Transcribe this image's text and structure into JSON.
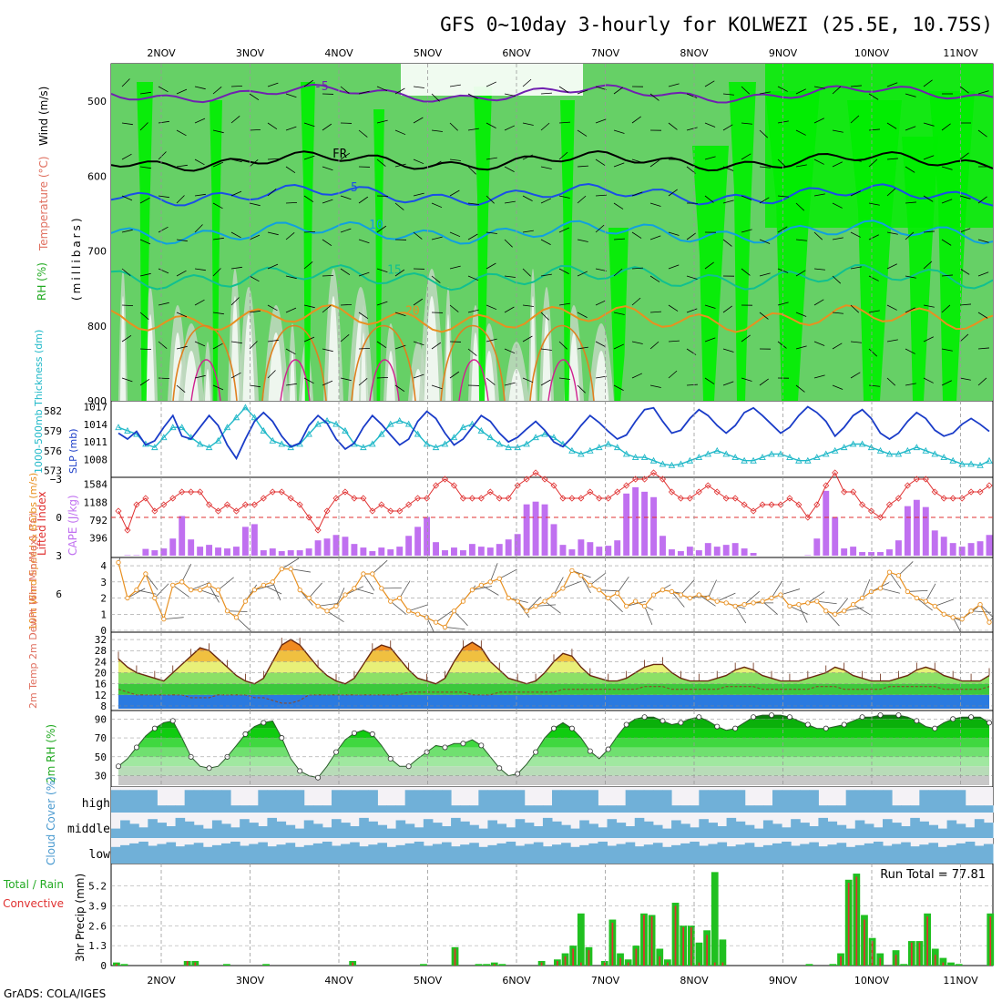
{
  "title": "GFS 0~10day 3-hourly for KOLWEZI (25.5E, 10.75S)",
  "credit": "GrADS: COLA/IGES",
  "dates": [
    "2NOV",
    "3NOV",
    "4NOV",
    "5NOV",
    "6NOV",
    "7NOV",
    "8NOV",
    "9NOV",
    "10NOV",
    "11NOV"
  ],
  "colors": {
    "rh_dark": "#00ee00",
    "rh_mid": "#66d066",
    "rh_light": "#c0d8c0",
    "cape": "#c070f0",
    "lifted": "#e03030",
    "slp": "#1a3cc8",
    "thickness": "#20b8c8",
    "wind": "#e89020",
    "precip_total": "#20c020",
    "precip_conv": "#e03030",
    "cloud": "#70b0d8",
    "cloud_bg": "#f4f2f6"
  },
  "chart_data": [
    {
      "type": "heatmap",
      "panel": "upper_air",
      "ylabel_left": "RH (%)",
      "ylabel_temp": "Temperature (°C)",
      "ylabel_wind": "Wind (m/s)",
      "ylabel_units": "(millibars)",
      "ylim": [
        900,
        450
      ],
      "yticks": [
        500,
        600,
        700,
        800,
        900
      ],
      "isotherms": [
        {
          "label": "-5",
          "pressure": 490
        },
        {
          "label": "FR",
          "pressure": 580
        },
        {
          "label": "5",
          "pressure": 625
        },
        {
          "label": "10",
          "pressure": 675
        },
        {
          "label": "15",
          "pressure": 735
        },
        {
          "label": "20",
          "pressure": 790
        }
      ]
    },
    {
      "type": "line",
      "panel": "slp_thickness",
      "ylabel_left": "1000-500mb Thickness (dm)",
      "ylabel_right": "SLP (mb)",
      "thickness_ticks": [
        573,
        576,
        579,
        582
      ],
      "slp_ticks": [
        1008,
        1011,
        1014,
        1017
      ],
      "series": [
        {
          "name": "SLP",
          "values": [
            1012.5,
            1011.5,
            1012.8,
            1010.5,
            1011.2,
            1013.5,
            1015.5,
            1012,
            1011.5,
            1013.5,
            1015.5,
            1013.8,
            1010.5,
            1008.2,
            1011.5,
            1014.5,
            1016,
            1014.5,
            1012,
            1010.2,
            1010.8,
            1013.8,
            1015.5,
            1014.2,
            1011.5,
            1009.8,
            1010.8,
            1013.5,
            1015.5,
            1014,
            1012.2,
            1010.5,
            1011.5,
            1014.5,
            1016.2,
            1015,
            1012.5,
            1010.5,
            1011.5,
            1013.5,
            1015.5,
            1014.5,
            1012.5,
            1011,
            1011.8,
            1013.2,
            1014.5,
            1013,
            1011,
            1010.2,
            1011.8,
            1013.8,
            1015.5,
            1014.3,
            1012.8,
            1011.5,
            1012.2,
            1014.5,
            1016.5,
            1016.8,
            1014.5,
            1012.5,
            1013,
            1015,
            1016.5,
            1015.5,
            1013.8,
            1012.5,
            1013.8,
            1016,
            1016.8,
            1015.5,
            1014,
            1012.5,
            1013.5,
            1015.5,
            1017,
            1016,
            1014.5,
            1012,
            1013.5,
            1015.5,
            1016.5,
            1015,
            1012.5,
            1011.5,
            1012.5,
            1014.5,
            1016,
            1015,
            1013,
            1012,
            1012.5,
            1014,
            1015,
            1014,
            1012.8
          ]
        },
        {
          "name": "Thickness",
          "values": [
            579.5,
            579,
            578.5,
            577,
            576.5,
            578,
            579.5,
            579.5,
            578,
            577,
            576.5,
            577.5,
            579.5,
            581,
            582.5,
            581,
            579,
            577.5,
            577,
            576.5,
            577,
            578.5,
            580,
            580.5,
            580,
            579,
            577,
            576.5,
            577,
            578.5,
            580,
            580.5,
            580,
            578.5,
            577,
            576.5,
            577,
            578,
            579.5,
            580,
            579,
            578,
            577,
            576.5,
            576.5,
            577,
            578,
            578.5,
            578,
            577,
            576,
            575.5,
            576,
            576.5,
            577,
            576.5,
            575.5,
            575,
            575,
            574.5,
            574,
            573.8,
            574,
            574.5,
            575,
            575.5,
            576,
            575.5,
            575,
            574.5,
            574.5,
            575,
            575.5,
            575.5,
            575,
            574.5,
            574.5,
            575,
            575.5,
            576,
            576.5,
            577,
            577,
            576.5,
            576,
            575.5,
            575.5,
            576,
            576.5,
            576,
            575.5,
            575,
            574.5,
            574,
            574,
            573.8,
            574.5
          ]
        }
      ]
    },
    {
      "type": "bar",
      "panel": "cape_lifted",
      "ylabel_left": "Lifted Index",
      "ylabel_right": "CAPE (J/kg)",
      "lifted_ticks": [
        6,
        3,
        0,
        -3
      ],
      "cape_ticks": [
        396,
        792,
        1188,
        1584
      ],
      "cape": [
        0,
        10,
        10,
        150,
        120,
        160,
        380,
        880,
        360,
        200,
        240,
        180,
        160,
        200,
        640,
        700,
        120,
        160,
        100,
        120,
        120,
        160,
        340,
        380,
        460,
        420,
        260,
        180,
        100,
        180,
        140,
        200,
        440,
        640,
        860,
        300,
        120,
        180,
        120,
        260,
        200,
        180,
        260,
        360,
        480,
        1140,
        1200,
        1140,
        700,
        240,
        140,
        360,
        300,
        200,
        220,
        340,
        1380,
        1520,
        1420,
        1300,
        440,
        140,
        100,
        200,
        120,
        280,
        200,
        240,
        280,
        160,
        60,
        0,
        0,
        0,
        0,
        0,
        10,
        380,
        1440,
        860,
        160,
        200,
        80,
        80,
        80,
        140,
        340,
        1100,
        1240,
        1080,
        560,
        420,
        280,
        200,
        280,
        320,
        460
      ],
      "lifted_index": [
        -0.5,
        1,
        -1,
        -1.5,
        -0.5,
        -1,
        -1.5,
        -2,
        -2,
        -2,
        -1,
        -0.5,
        -1,
        -0.5,
        -1,
        -1,
        -1.5,
        -2,
        -2,
        -1.5,
        -1,
        0,
        1,
        -0.5,
        -1.5,
        -2,
        -1.5,
        -1.5,
        -0.5,
        -1,
        -0.5,
        -0.5,
        -1,
        -1.5,
        -1.5,
        -2.5,
        -3,
        -2.5,
        -1.5,
        -1.5,
        -1.5,
        -2,
        -1.5,
        -1.5,
        -2.5,
        -3,
        -3.5,
        -3,
        -2.5,
        -1.5,
        -1.5,
        -1.5,
        -2,
        -1.5,
        -1.5,
        -2,
        -2.5,
        -3,
        -3,
        -3.5,
        -3,
        -2,
        -1.5,
        -1.5,
        -2,
        -2.5,
        -2,
        -1.5,
        -1.5,
        -1,
        -0.5,
        -1,
        -1,
        -1,
        -1.5,
        -1,
        0,
        -1,
        -2.5,
        -3.5,
        -2,
        -2,
        -1,
        -0.5,
        0,
        -1,
        -1.5,
        -2.5,
        -3,
        -3,
        -2,
        -1.5,
        -1.5,
        -1.5,
        -2,
        -2,
        -2.5
      ]
    },
    {
      "type": "line",
      "panel": "wind10m",
      "ylabel": "10m Wind Speed & Barbs (m/s)",
      "yticks": [
        0,
        1,
        2,
        3,
        4
      ],
      "values": [
        4.2,
        2,
        2.5,
        3.5,
        2,
        0.7,
        2.8,
        3,
        2.5,
        2.5,
        2.8,
        2.5,
        1.2,
        0.8,
        1.8,
        2.5,
        2.8,
        3,
        3.8,
        3.8,
        2.5,
        2,
        1.5,
        1.2,
        1.5,
        2.2,
        2.6,
        3.5,
        3.5,
        2.6,
        1.8,
        2,
        1.2,
        1,
        0.8,
        0.5,
        0.2,
        1.2,
        1.8,
        2.5,
        2.8,
        3,
        3.2,
        2,
        1.8,
        1.2,
        1.5,
        1.8,
        2.2,
        2.6,
        3.7,
        3.4,
        2.8,
        2.5,
        2,
        2.3,
        1.5,
        1.8,
        1.5,
        2.2,
        2.5,
        2.4,
        2.2,
        2,
        2.2,
        2,
        1.8,
        1.7,
        1.5,
        1.6,
        1.7,
        1.8,
        2,
        2.2,
        1.5,
        1.6,
        1.7,
        1.8,
        1.2,
        1,
        1.2,
        1.6,
        2,
        2.4,
        2.6,
        3.6,
        3.4,
        2.4,
        2,
        1.8,
        1.5,
        1,
        0.8,
        0.7,
        1.2,
        1.6,
        0.5
      ]
    },
    {
      "type": "area",
      "panel": "temp2m",
      "ylabel": "2m Temp 2m DewPt (6hr Min/Max) (°C)",
      "yticks": [
        8,
        12,
        16,
        20,
        24,
        28,
        32
      ],
      "temp": [
        25,
        22,
        20,
        19,
        18,
        17,
        20,
        23,
        26,
        29,
        28,
        25,
        22,
        19,
        17,
        16,
        18,
        24,
        30,
        32,
        30,
        26,
        22,
        19,
        17,
        16,
        18,
        23,
        28,
        30,
        29,
        25,
        21,
        18,
        17,
        16,
        18,
        24,
        29,
        31,
        29,
        24,
        21,
        18,
        17,
        16,
        17,
        20,
        24,
        27,
        26,
        22,
        19,
        18,
        17,
        17,
        18,
        20,
        22,
        23,
        23,
        20,
        18,
        17,
        17,
        17,
        18,
        19,
        21,
        22,
        21,
        19,
        18,
        17,
        17,
        17,
        18,
        19,
        20,
        22,
        21,
        19,
        18,
        17,
        17,
        17,
        18,
        19,
        21,
        22,
        21,
        19,
        18,
        17,
        17,
        17,
        19
      ],
      "dewpoint": [
        14,
        13,
        12,
        12,
        12,
        12,
        12,
        12,
        11,
        11,
        11,
        12,
        12,
        12,
        12,
        11,
        11,
        10,
        9,
        9,
        10,
        12,
        12,
        12,
        12,
        12,
        12,
        12,
        12,
        12,
        12,
        12,
        13,
        13,
        13,
        13,
        13,
        13,
        13,
        12,
        12,
        12,
        13,
        13,
        13,
        13,
        13,
        13,
        13,
        14,
        14,
        14,
        14,
        14,
        14,
        14,
        14,
        14,
        15,
        15,
        15,
        14,
        14,
        14,
        14,
        14,
        14,
        15,
        15,
        15,
        15,
        14,
        14,
        14,
        14,
        14,
        14,
        15,
        15,
        15,
        14,
        14,
        14,
        14,
        14,
        15,
        15,
        15,
        15,
        15,
        15,
        14,
        14,
        14,
        14,
        14,
        15
      ]
    },
    {
      "type": "area",
      "panel": "rh2m",
      "ylabel": "2m RH (%)",
      "yticks": [
        30,
        50,
        70,
        90
      ],
      "values": [
        40,
        48,
        60,
        72,
        80,
        86,
        88,
        70,
        50,
        40,
        38,
        40,
        50,
        62,
        74,
        82,
        86,
        88,
        70,
        48,
        35,
        30,
        28,
        40,
        55,
        68,
        75,
        78,
        74,
        62,
        48,
        40,
        40,
        48,
        55,
        62,
        60,
        64,
        64,
        68,
        62,
        50,
        38,
        30,
        32,
        42,
        55,
        70,
        80,
        86,
        80,
        70,
        56,
        48,
        58,
        72,
        84,
        90,
        92,
        92,
        88,
        84,
        86,
        90,
        92,
        88,
        82,
        78,
        80,
        86,
        92,
        94,
        94,
        94,
        92,
        88,
        84,
        80,
        80,
        82,
        84,
        88,
        92,
        92,
        94,
        94,
        94,
        92,
        88,
        82,
        80,
        86,
        90,
        92,
        92,
        92,
        86
      ]
    },
    {
      "type": "heatmap",
      "panel": "cloud",
      "ylabel": "Cloud Cover (%)",
      "rows": [
        "high",
        "middle",
        "low"
      ]
    },
    {
      "type": "bar",
      "panel": "precip",
      "ylabel": "3hr Precip (mm)",
      "ylabel_left": "Total / Rain",
      "ylabel_left2": "Convective",
      "yticks": [
        0,
        1.3,
        2.6,
        3.9,
        5.2
      ],
      "run_total": "Run Total = 77.81",
      "total": [
        0.2,
        0.1,
        0,
        0,
        0,
        0,
        0,
        0,
        0,
        0.3,
        0.3,
        0,
        0,
        0,
        0.1,
        0,
        0,
        0,
        0,
        0.1,
        0,
        0,
        0,
        0,
        0,
        0,
        0,
        0,
        0,
        0,
        0.3,
        0,
        0,
        0,
        0,
        0,
        0,
        0,
        0,
        0.1,
        0,
        0,
        0,
        1.2,
        0,
        0,
        0.1,
        0.1,
        0.2,
        0.1,
        0,
        0,
        0,
        0,
        0.3,
        0,
        0.4,
        0.8,
        1.3,
        3.4,
        1.2,
        0,
        0.3,
        3,
        0.8,
        0.4,
        1.3,
        3.4,
        3.3,
        1.1,
        0.4,
        4.1,
        2.6,
        2.6,
        1.5,
        2.3,
        6.1,
        1.7,
        0,
        0,
        0,
        0,
        0,
        0,
        0,
        0,
        0,
        0,
        0.1,
        0,
        0,
        0.1,
        0.8,
        5.6,
        6,
        3.3,
        1.8,
        0.8,
        0,
        1,
        0.1,
        1.6,
        1.6,
        3.4,
        1.1,
        0.5,
        0.2,
        0.1,
        0,
        0,
        0,
        3.4
      ],
      "convective": [
        0.1,
        0,
        0,
        0,
        0,
        0,
        0,
        0,
        0,
        0.3,
        0.2,
        0,
        0,
        0,
        0,
        0,
        0,
        0,
        0,
        0,
        0,
        0,
        0,
        0,
        0,
        0,
        0,
        0,
        0,
        0,
        0.2,
        0,
        0,
        0,
        0,
        0,
        0,
        0,
        0,
        0,
        0,
        0,
        0,
        1.1,
        0,
        0,
        0,
        0,
        0.1,
        0,
        0,
        0,
        0,
        0,
        0.2,
        0,
        0.3,
        0.6,
        1.1,
        0.2,
        1,
        0,
        0.2,
        2.8,
        0.5,
        0.2,
        1.1,
        3.3,
        3.2,
        0.6,
        0.2,
        3.9,
        2.5,
        2.5,
        0.2,
        2,
        0.2,
        0.2,
        0,
        0,
        0,
        0,
        0,
        0,
        0,
        0,
        0,
        0,
        0,
        0,
        0,
        0,
        0.6,
        5.4,
        5.8,
        3,
        1.6,
        0.5,
        0,
        0.7,
        0,
        1.5,
        1.5,
        3.2,
        0.7,
        0.2,
        0,
        0,
        0,
        0,
        0,
        3.2
      ]
    }
  ]
}
